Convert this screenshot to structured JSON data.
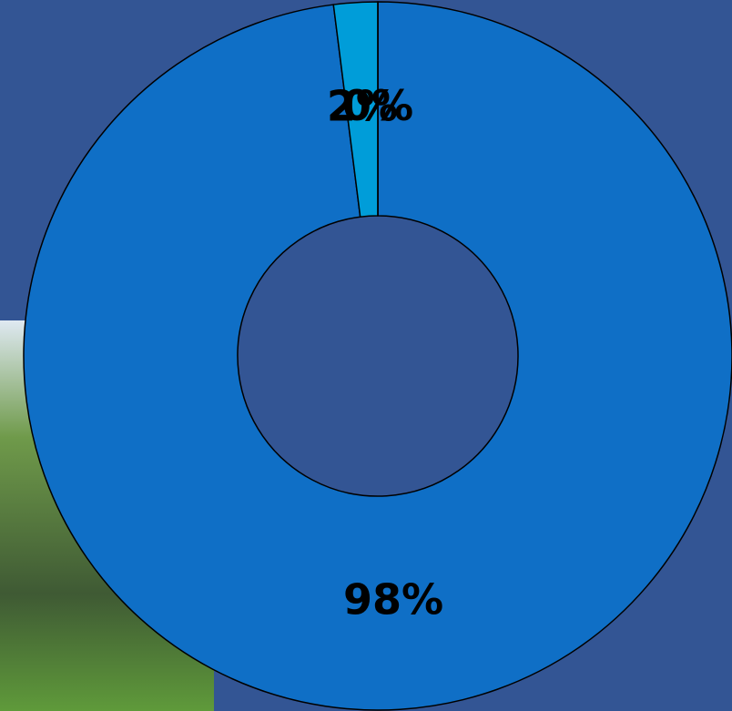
{
  "chart_data": {
    "type": "donut",
    "values": [
      98,
      2,
      0
    ],
    "value_labels": [
      "98%",
      "2%",
      "0%"
    ],
    "colors": [
      "#0f6fc6",
      "#009dd9",
      "#0bd0d9"
    ]
  }
}
